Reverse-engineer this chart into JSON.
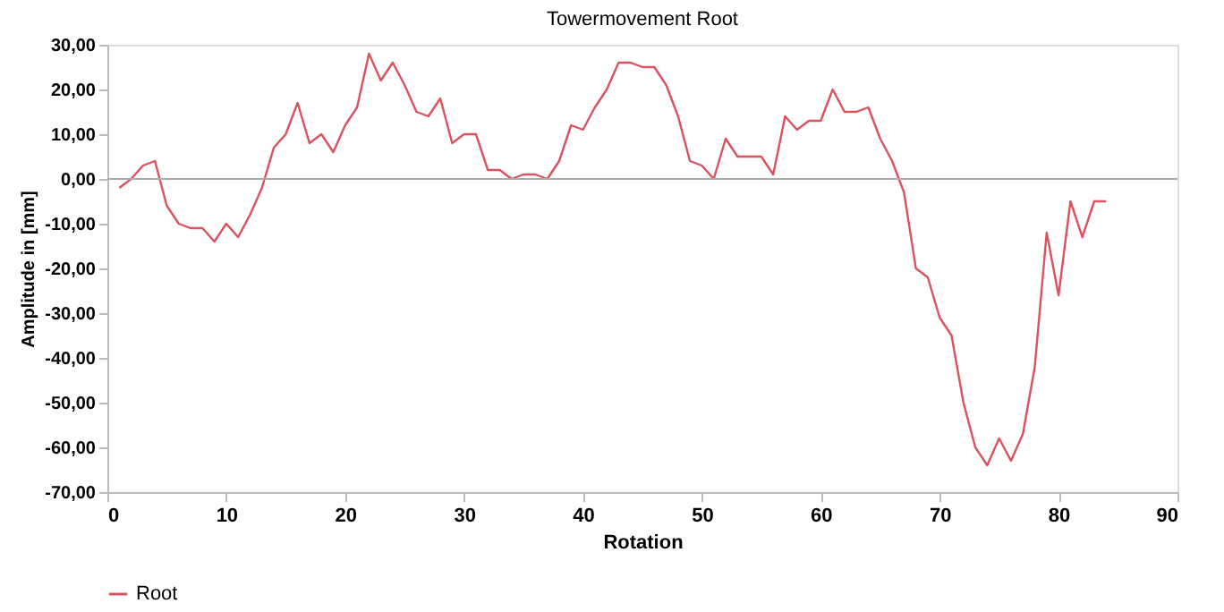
{
  "chart_data": {
    "type": "line",
    "title": "Towermovement Root",
    "xlabel": "Rotation",
    "ylabel": "Amplitude in [mm]",
    "x": [
      1,
      2,
      3,
      4,
      5,
      6,
      7,
      8,
      9,
      10,
      11,
      12,
      13,
      14,
      15,
      16,
      17,
      18,
      19,
      20,
      21,
      22,
      23,
      24,
      25,
      26,
      27,
      28,
      29,
      30,
      31,
      32,
      33,
      34,
      35,
      36,
      37,
      38,
      39,
      40,
      41,
      42,
      43,
      44,
      45,
      46,
      47,
      48,
      49,
      50,
      51,
      52,
      53,
      54,
      55,
      56,
      57,
      58,
      59,
      60,
      61,
      62,
      63,
      64,
      65,
      66,
      67,
      68,
      69,
      70,
      71,
      72,
      73,
      74,
      75,
      76,
      77,
      78,
      79,
      80,
      81,
      82,
      83,
      84
    ],
    "series": [
      {
        "name": "Root",
        "color": "#d9525e",
        "values": [
          -2,
          0,
          3,
          4,
          -6,
          -10,
          -11,
          -11,
          -14,
          -10,
          -13,
          -8,
          -2,
          7,
          10,
          17,
          8,
          10,
          6,
          12,
          16,
          28,
          22,
          26,
          21,
          15,
          14,
          18,
          8,
          10,
          10,
          2,
          2,
          0,
          1,
          1,
          0,
          4,
          12,
          11,
          16,
          20,
          26,
          26,
          25,
          25,
          21,
          14,
          4,
          3,
          0,
          9,
          5,
          5,
          5,
          1,
          14,
          11,
          13,
          13,
          20,
          15,
          15,
          16,
          9,
          4,
          -3,
          -20,
          -22,
          -31,
          -35,
          -50,
          -60,
          -64,
          -58,
          -63,
          -57,
          -42,
          -12,
          -26,
          -5,
          -13,
          -5,
          -5
        ]
      }
    ],
    "xlim": [
      0,
      90
    ],
    "xticks": [
      0,
      10,
      20,
      30,
      40,
      50,
      60,
      70,
      80,
      90
    ],
    "ylim": [
      -70,
      30
    ],
    "yticks": [
      {
        "value": -70,
        "label": "-70,00"
      },
      {
        "value": -60,
        "label": "-60,00"
      },
      {
        "value": -50,
        "label": "-50,00"
      },
      {
        "value": -40,
        "label": "-40,00"
      },
      {
        "value": -30,
        "label": "-30,00"
      },
      {
        "value": -20,
        "label": "-20,00"
      },
      {
        "value": -10,
        "label": "-10,00"
      },
      {
        "value": 0,
        "label": "0,00"
      },
      {
        "value": 10,
        "label": "10,00"
      },
      {
        "value": 20,
        "label": "20,00"
      },
      {
        "value": 30,
        "label": "30,00"
      }
    ],
    "ref_lines": [
      {
        "axis": "y",
        "value": 0,
        "color": "#aaaaaa"
      }
    ],
    "grid": false,
    "legend": "bottom",
    "marker": "none",
    "line_style": "solid"
  }
}
